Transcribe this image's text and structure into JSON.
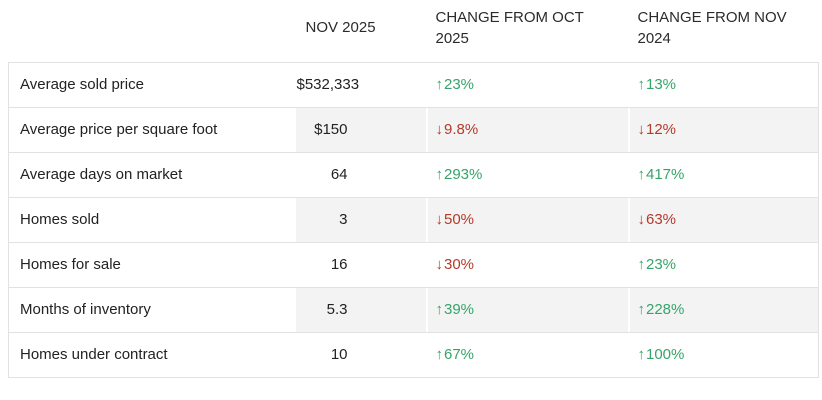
{
  "table": {
    "columns": [
      "",
      "NOV 2025",
      "CHANGE FROM OCT 2025",
      "CHANGE FROM NOV 2024"
    ],
    "rows": [
      {
        "label": "Average sold price",
        "value": "$532,333",
        "changes": [
          {
            "direction": "up",
            "value": "23%"
          },
          {
            "direction": "up",
            "value": "13%"
          }
        ]
      },
      {
        "label": "Average price per square foot",
        "value": "$150",
        "changes": [
          {
            "direction": "down",
            "value": "9.8%"
          },
          {
            "direction": "down",
            "value": "12%"
          }
        ]
      },
      {
        "label": "Average days on market",
        "value": "64",
        "changes": [
          {
            "direction": "up",
            "value": "293%"
          },
          {
            "direction": "up",
            "value": "417%"
          }
        ]
      },
      {
        "label": "Homes sold",
        "value": "3",
        "changes": [
          {
            "direction": "down",
            "value": "50%"
          },
          {
            "direction": "down",
            "value": "63%"
          }
        ]
      },
      {
        "label": "Homes for sale",
        "value": "16",
        "changes": [
          {
            "direction": "down",
            "value": "30%"
          },
          {
            "direction": "up",
            "value": "23%"
          }
        ]
      },
      {
        "label": "Months of inventory",
        "value": "5.3",
        "changes": [
          {
            "direction": "up",
            "value": "39%"
          },
          {
            "direction": "up",
            "value": "228%"
          }
        ]
      },
      {
        "label": "Homes under contract",
        "value": "10",
        "changes": [
          {
            "direction": "up",
            "value": "67%"
          },
          {
            "direction": "up",
            "value": "100%"
          }
        ]
      }
    ]
  },
  "icons": {
    "up": "↑",
    "down": "↓"
  },
  "colors": {
    "up_green": "#36a469",
    "down_red": "#b43a29",
    "stripe": "#f3f3f4",
    "border": "#e2e2e2",
    "text": "#222222"
  },
  "chart_data": {
    "type": "table",
    "title": "",
    "columns": [
      "",
      "NOV 2025",
      "CHANGE FROM OCT 2025",
      "CHANGE FROM NOV 2024"
    ],
    "rows": [
      [
        "Average sold price",
        "$532,333",
        "+23%",
        "+13%"
      ],
      [
        "Average price per square foot",
        "$150",
        "-9.8%",
        "-12%"
      ],
      [
        "Average days on market",
        "64",
        "+293%",
        "+417%"
      ],
      [
        "Homes sold",
        "3",
        "-50%",
        "-63%"
      ],
      [
        "Homes for sale",
        "16",
        "-30%",
        "+23%"
      ],
      [
        "Months of inventory",
        "5.3",
        "+39%",
        "+228%"
      ],
      [
        "Homes under contract",
        "10",
        "+67%",
        "+100%"
      ]
    ],
    "layout": {
      "zebra_striping": "even rows, value columns only",
      "change_up_color": "#36a469",
      "change_down_color": "#b43a29"
    }
  }
}
